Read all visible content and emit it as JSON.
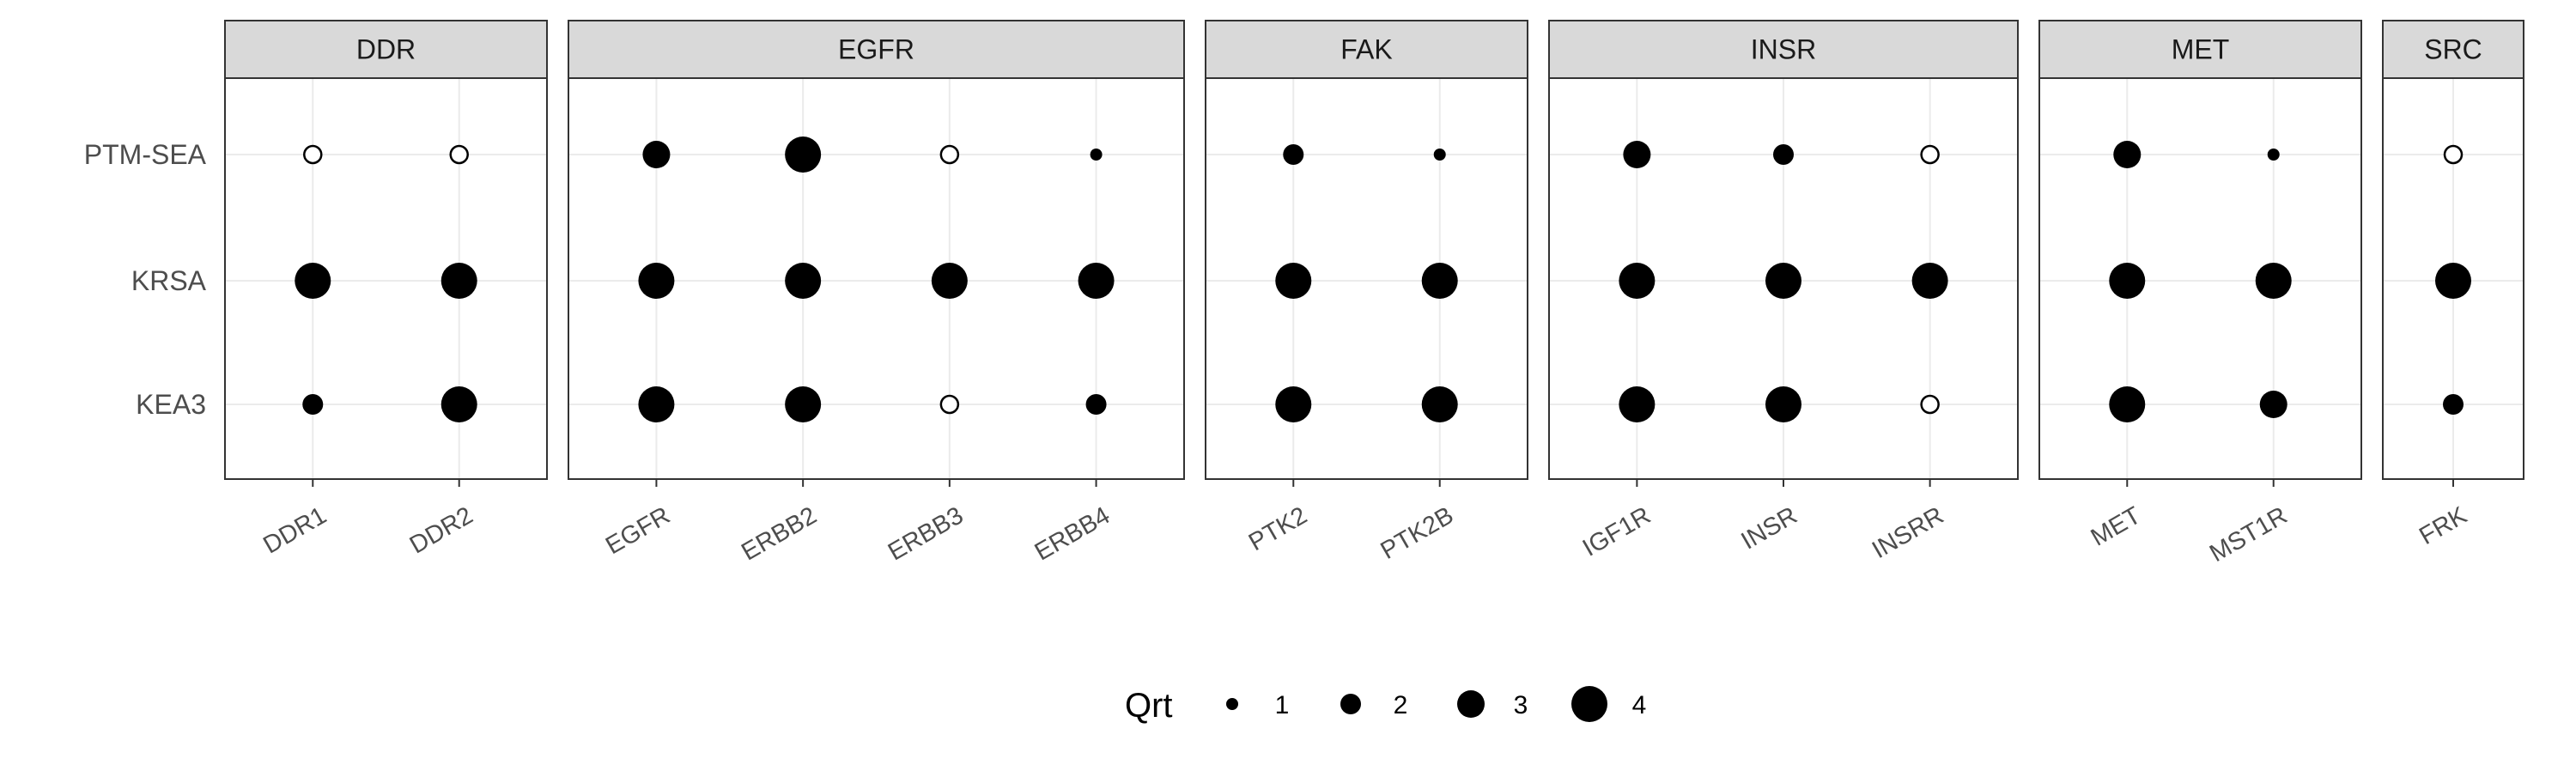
{
  "chart_data": {
    "type": "scatter",
    "subtype": "faceted-dot-plot",
    "y_categories": [
      "PTM-SEA",
      "KRSA",
      "KEA3"
    ],
    "facets": [
      {
        "name": "DDR",
        "kinases": [
          "DDR1",
          "DDR2"
        ]
      },
      {
        "name": "EGFR",
        "kinases": [
          "EGFR",
          "ERBB2",
          "ERBB3",
          "ERBB4"
        ]
      },
      {
        "name": "FAK",
        "kinases": [
          "PTK2",
          "PTK2B"
        ]
      },
      {
        "name": "INSR",
        "kinases": [
          "IGF1R",
          "INSR",
          "INSRR"
        ]
      },
      {
        "name": "MET",
        "kinases": [
          "MET",
          "MST1R"
        ]
      },
      {
        "name": "SRC",
        "kinases": [
          "FRK"
        ]
      }
    ],
    "points": [
      {
        "facet": "DDR",
        "x": "DDR1",
        "y": "PTM-SEA",
        "qrt": null
      },
      {
        "facet": "DDR",
        "x": "DDR2",
        "y": "PTM-SEA",
        "qrt": null
      },
      {
        "facet": "DDR",
        "x": "DDR1",
        "y": "KRSA",
        "qrt": 4
      },
      {
        "facet": "DDR",
        "x": "DDR2",
        "y": "KRSA",
        "qrt": 4
      },
      {
        "facet": "DDR",
        "x": "DDR1",
        "y": "KEA3",
        "qrt": 2
      },
      {
        "facet": "DDR",
        "x": "DDR2",
        "y": "KEA3",
        "qrt": 4
      },
      {
        "facet": "EGFR",
        "x": "EGFR",
        "y": "PTM-SEA",
        "qrt": 3
      },
      {
        "facet": "EGFR",
        "x": "ERBB2",
        "y": "PTM-SEA",
        "qrt": 4
      },
      {
        "facet": "EGFR",
        "x": "ERBB3",
        "y": "PTM-SEA",
        "qrt": null
      },
      {
        "facet": "EGFR",
        "x": "ERBB4",
        "y": "PTM-SEA",
        "qrt": 1
      },
      {
        "facet": "EGFR",
        "x": "EGFR",
        "y": "KRSA",
        "qrt": 4
      },
      {
        "facet": "EGFR",
        "x": "ERBB2",
        "y": "KRSA",
        "qrt": 4
      },
      {
        "facet": "EGFR",
        "x": "ERBB3",
        "y": "KRSA",
        "qrt": 4
      },
      {
        "facet": "EGFR",
        "x": "ERBB4",
        "y": "KRSA",
        "qrt": 4
      },
      {
        "facet": "EGFR",
        "x": "EGFR",
        "y": "KEA3",
        "qrt": 4
      },
      {
        "facet": "EGFR",
        "x": "ERBB2",
        "y": "KEA3",
        "qrt": 4
      },
      {
        "facet": "EGFR",
        "x": "ERBB3",
        "y": "KEA3",
        "qrt": null
      },
      {
        "facet": "EGFR",
        "x": "ERBB4",
        "y": "KEA3",
        "qrt": 2
      },
      {
        "facet": "FAK",
        "x": "PTK2",
        "y": "PTM-SEA",
        "qrt": 2
      },
      {
        "facet": "FAK",
        "x": "PTK2B",
        "y": "PTM-SEA",
        "qrt": 1
      },
      {
        "facet": "FAK",
        "x": "PTK2",
        "y": "KRSA",
        "qrt": 4
      },
      {
        "facet": "FAK",
        "x": "PTK2B",
        "y": "KRSA",
        "qrt": 4
      },
      {
        "facet": "FAK",
        "x": "PTK2",
        "y": "KEA3",
        "qrt": 4
      },
      {
        "facet": "FAK",
        "x": "PTK2B",
        "y": "KEA3",
        "qrt": 4
      },
      {
        "facet": "INSR",
        "x": "IGF1R",
        "y": "PTM-SEA",
        "qrt": 3
      },
      {
        "facet": "INSR",
        "x": "INSR",
        "y": "PTM-SEA",
        "qrt": 2
      },
      {
        "facet": "INSR",
        "x": "INSRR",
        "y": "PTM-SEA",
        "qrt": null
      },
      {
        "facet": "INSR",
        "x": "IGF1R",
        "y": "KRSA",
        "qrt": 4
      },
      {
        "facet": "INSR",
        "x": "INSR",
        "y": "KRSA",
        "qrt": 4
      },
      {
        "facet": "INSR",
        "x": "INSRR",
        "y": "KRSA",
        "qrt": 4
      },
      {
        "facet": "INSR",
        "x": "IGF1R",
        "y": "KEA3",
        "qrt": 4
      },
      {
        "facet": "INSR",
        "x": "INSR",
        "y": "KEA3",
        "qrt": 4
      },
      {
        "facet": "INSR",
        "x": "INSRR",
        "y": "KEA3",
        "qrt": null
      },
      {
        "facet": "MET",
        "x": "MET",
        "y": "PTM-SEA",
        "qrt": 3
      },
      {
        "facet": "MET",
        "x": "MST1R",
        "y": "PTM-SEA",
        "qrt": 1
      },
      {
        "facet": "MET",
        "x": "MET",
        "y": "KRSA",
        "qrt": 4
      },
      {
        "facet": "MET",
        "x": "MST1R",
        "y": "KRSA",
        "qrt": 4
      },
      {
        "facet": "MET",
        "x": "MET",
        "y": "KEA3",
        "qrt": 4
      },
      {
        "facet": "MET",
        "x": "MST1R",
        "y": "KEA3",
        "qrt": 3
      },
      {
        "facet": "SRC",
        "x": "FRK",
        "y": "PTM-SEA",
        "qrt": null
      },
      {
        "facet": "SRC",
        "x": "FRK",
        "y": "KRSA",
        "qrt": 4
      },
      {
        "facet": "SRC",
        "x": "FRK",
        "y": "KEA3",
        "qrt": 2
      }
    ],
    "legend": {
      "title": "Qrt",
      "position": "bottom",
      "entries": [
        {
          "label": "1",
          "qrt": 1
        },
        {
          "label": "2",
          "qrt": 2
        },
        {
          "label": "3",
          "qrt": 3
        },
        {
          "label": "4",
          "qrt": 4
        }
      ]
    },
    "missing_value_marker": "open-circle",
    "grid": true,
    "colors": {
      "point": "#000000",
      "strip_fill": "#d9d9d9",
      "panel_border": "#333333",
      "grid": "#ebebeb",
      "tick_text": "#4d4d4d"
    }
  }
}
